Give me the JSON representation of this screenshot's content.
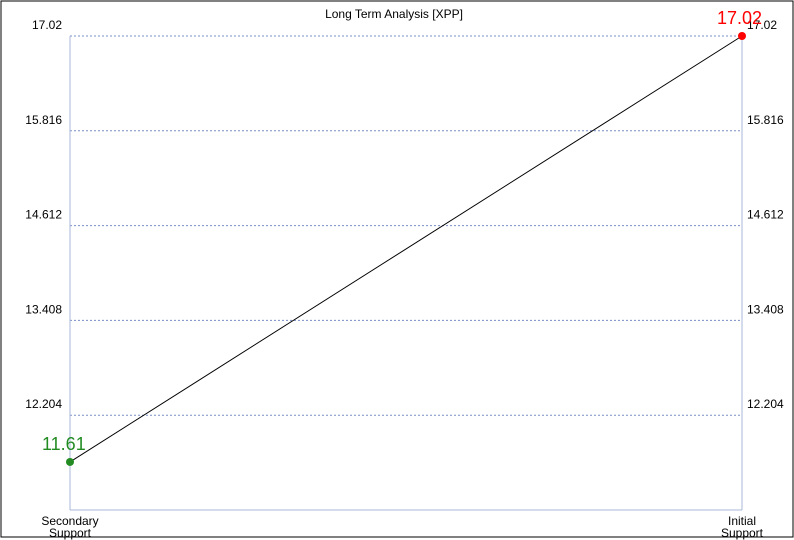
{
  "chart_data": {
    "type": "line",
    "title": "Long Term Analysis [XPP]",
    "categories": [
      "Secondary Support",
      "Initial Support"
    ],
    "category_lines": [
      [
        "Secondary",
        "Support"
      ],
      [
        "Initial",
        "Support"
      ]
    ],
    "series": [
      {
        "values": [
          11.61,
          17.02
        ],
        "point_colors": [
          "#228b22",
          "#ff0000"
        ],
        "data_labels": [
          "11.61",
          "17.02"
        ]
      }
    ],
    "y_ticks": [
      12.204,
      13.408,
      14.612,
      15.816,
      17.02
    ],
    "y_tick_labels": [
      "12.204",
      "13.408",
      "14.612",
      "15.816",
      "17.02"
    ],
    "ylim": [
      11.0,
      17.02
    ],
    "y_axes": "both",
    "grid": "horizontal-dotted",
    "line_color": "#000000",
    "gridline_color": "#7a8fc4",
    "frame_color": "#a7b7d9"
  }
}
